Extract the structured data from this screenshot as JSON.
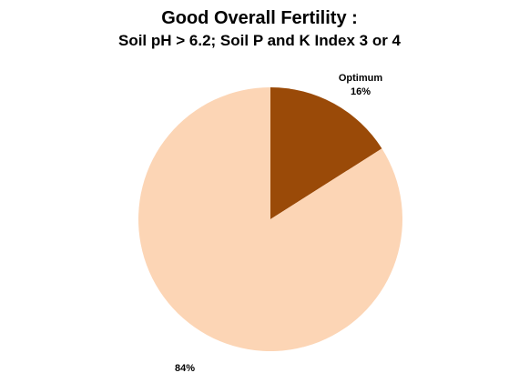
{
  "chart_data": {
    "type": "pie",
    "title": "Good Overall Fertility :",
    "subtitle": "Soil pH > 6.2; Soil P and K Index 3 or 4",
    "slices": [
      {
        "label": "Optimum",
        "value": 16,
        "value_label": "16%",
        "color": "#9a4a08"
      },
      {
        "label": "",
        "value": 84,
        "value_label": "84%",
        "color": "#fcd5b5"
      }
    ]
  }
}
